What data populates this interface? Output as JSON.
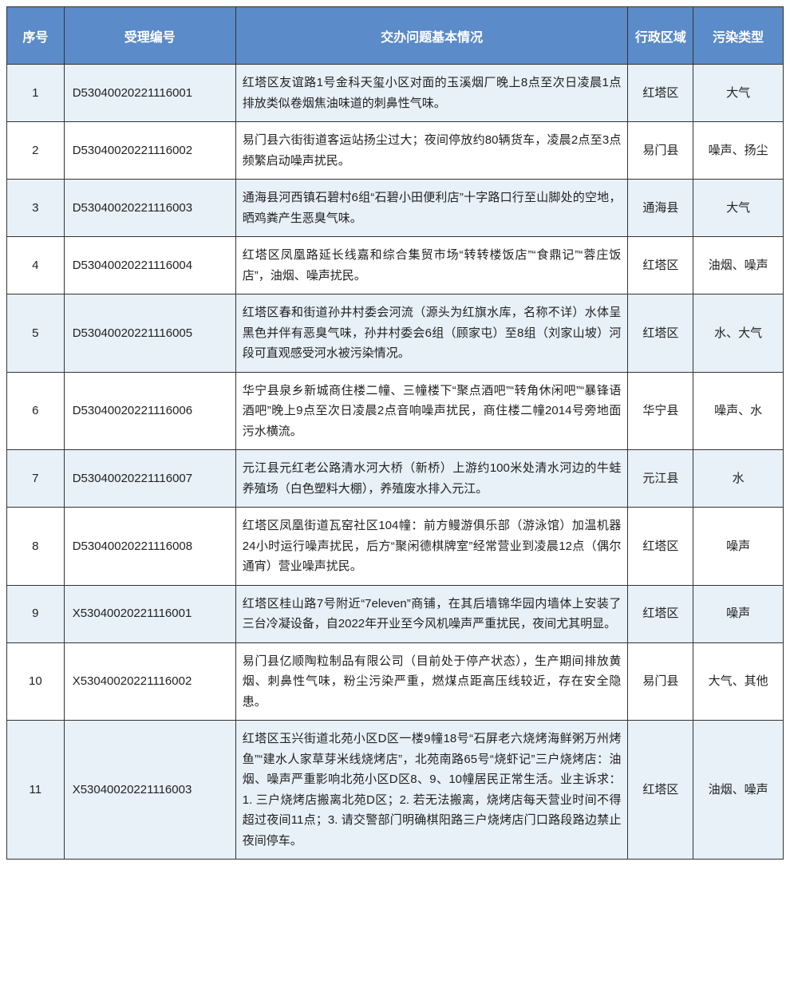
{
  "table": {
    "header_bg": "#5b8bc9",
    "header_fg": "#ffffff",
    "odd_row_bg": "#e8f0f8",
    "even_row_bg": "#ffffff",
    "columns": [
      {
        "key": "seq",
        "label": "序号"
      },
      {
        "key": "id",
        "label": "受理编号"
      },
      {
        "key": "desc",
        "label": "交办问题基本情况"
      },
      {
        "key": "region",
        "label": "行政区域"
      },
      {
        "key": "type",
        "label": "污染类型"
      }
    ],
    "rows": [
      {
        "seq": "1",
        "id": "D53040020221116001",
        "desc": "红塔区友谊路1号金科天玺小区对面的玉溪烟厂晚上8点至次日凌晨1点排放类似卷烟焦油味道的刺鼻性气味。",
        "region": "红塔区",
        "type": "大气"
      },
      {
        "seq": "2",
        "id": "D53040020221116002",
        "desc": "易门县六街街道客运站扬尘过大；夜间停放约80辆货车，凌晨2点至3点频繁启动噪声扰民。",
        "region": "易门县",
        "type": "噪声、扬尘"
      },
      {
        "seq": "3",
        "id": "D53040020221116003",
        "desc": "通海县河西镇石碧村6组“石碧小田便利店”十字路口行至山脚处的空地，晒鸡粪产生恶臭气味。",
        "region": "通海县",
        "type": "大气"
      },
      {
        "seq": "4",
        "id": "D53040020221116004",
        "desc": "红塔区凤凰路延长线嘉和综合集贸市场“转转楼饭店”“食鼎记”“蓉庄饭店”，油烟、噪声扰民。",
        "region": "红塔区",
        "type": "油烟、噪声"
      },
      {
        "seq": "5",
        "id": "D53040020221116005",
        "desc": "红塔区春和街道孙井村委会河流（源头为红旗水库，名称不详）水体呈黑色并伴有恶臭气味，孙井村委会6组（顾家屯）至8组（刘家山坡）河段可直观感受河水被污染情况。",
        "region": "红塔区",
        "type": "水、大气"
      },
      {
        "seq": "6",
        "id": "D53040020221116006",
        "desc": "华宁县泉乡新城商住楼二幢、三幢楼下“聚点酒吧”“转角休闲吧”“暴锋语酒吧”晚上9点至次日凌晨2点音响噪声扰民，商住楼二幢2014号旁地面污水横流。",
        "region": "华宁县",
        "type": "噪声、水"
      },
      {
        "seq": "7",
        "id": "D53040020221116007",
        "desc": "元江县元红老公路清水河大桥（新桥）上游约100米处清水河边的牛蛙养殖场（白色塑料大棚），养殖废水排入元江。",
        "region": "元江县",
        "type": "水"
      },
      {
        "seq": "8",
        "id": "D53040020221116008",
        "desc": "红塔区凤凰街道瓦窑社区104幢：前方鳗游俱乐部（游泳馆）加温机器24小时运行噪声扰民，后方“聚闲德棋牌室”经常营业到凌晨12点（偶尔通宵）营业噪声扰民。",
        "region": "红塔区",
        "type": "噪声"
      },
      {
        "seq": "9",
        "id": "X53040020221116001",
        "desc": "红塔区桂山路7号附近“7eleven”商铺，在其后墙锦华园内墙体上安装了三台冷凝设备，自2022年开业至今风机噪声严重扰民，夜间尤其明显。",
        "region": "红塔区",
        "type": "噪声"
      },
      {
        "seq": "10",
        "id": "X53040020221116002",
        "desc": "易门县亿顺陶粒制品有限公司（目前处于停产状态），生产期间排放黄烟、刺鼻性气味，粉尘污染严重，燃煤点距高压线较近，存在安全隐患。",
        "region": "易门县",
        "type": "大气、其他"
      },
      {
        "seq": "11",
        "id": "X53040020221116003",
        "desc": "红塔区玉兴街道北苑小区D区一楼9幢18号“石屏老六烧烤海鲜粥万州烤鱼”“建水人家草芽米线烧烤店”，北苑南路65号“烧虾记”三户烧烤店：油烟、噪声严重影响北苑小区D区8、9、10幢居民正常生活。业主诉求：1. 三户烧烤店搬离北苑D区；2. 若无法搬离，烧烤店每天营业时间不得超过夜间11点；3. 请交警部门明确棋阳路三户烧烤店门口路段路边禁止夜间停车。",
        "region": "红塔区",
        "type": "油烟、噪声"
      }
    ]
  }
}
